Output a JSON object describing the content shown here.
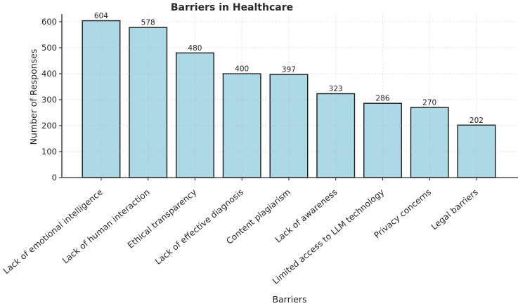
{
  "chart_data": {
    "type": "bar",
    "title": "Barriers in Healthcare",
    "xlabel": "Barriers",
    "ylabel": "Number of Responses",
    "categories": [
      "Lack of emotional intelligence",
      "Lack of human interaction",
      "Ethical transparency",
      "Lack of effective diagnosis",
      "Content plagiarism",
      "Lack of awareness",
      "Limited access to LLM technology",
      "Privacy concerns",
      "Legal barriers"
    ],
    "values": [
      604,
      578,
      480,
      400,
      397,
      323,
      286,
      270,
      202
    ],
    "yticks": [
      0,
      100,
      200,
      300,
      400,
      500,
      600
    ],
    "ylim": [
      0,
      630
    ],
    "grid": true,
    "grid_style": "dotted",
    "legend": "none",
    "bar_color": "#ADD8E6",
    "bar_edge_color": "#1a1a1a",
    "text_color": "#262626",
    "grid_color": "#a8a8a8",
    "background": "#ffffff"
  }
}
